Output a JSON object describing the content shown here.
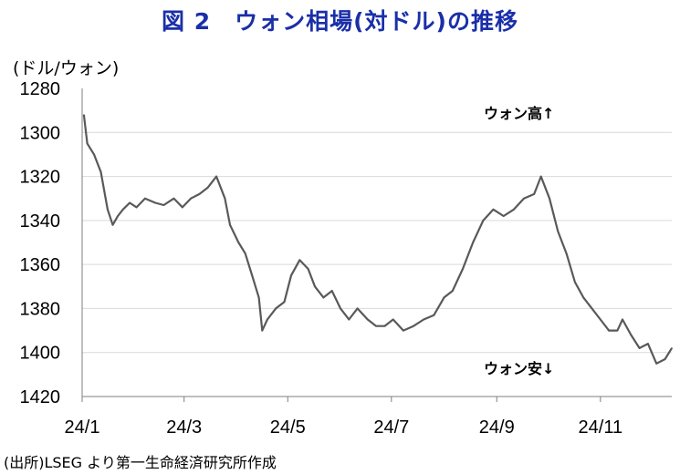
{
  "title": "図 2　ウォン相場(対ドル)の推移",
  "unit_label": "(ドル/ウォン)",
  "source": "(出所)LSEG より第一生命経済研究所作成",
  "chart_data": {
    "type": "line",
    "title": "図 2　ウォン相場(対ドル)の推移",
    "ylabel": "(ドル/ウォン)",
    "xlabel": "",
    "y_inverted": true,
    "ylim": [
      1280,
      1420
    ],
    "yticks": [
      "1280",
      "1300",
      "1320",
      "1340",
      "1360",
      "1380",
      "1400",
      "1420"
    ],
    "xticks": [
      "24/1",
      "24/3",
      "24/5",
      "24/7",
      "24/9",
      "24/11"
    ],
    "grid": "horizontal",
    "line_color": "#595959",
    "annotations": [
      "ウォン高↑",
      "ウォン安↓"
    ],
    "series": [
      {
        "x": [
          "24/1/02",
          "24/1/04",
          "24/1/08",
          "24/1/12",
          "24/1/16",
          "24/1/19",
          "24/1/22",
          "24/1/25",
          "24/1/29",
          "24/2/02",
          "24/2/07",
          "24/2/13",
          "24/2/18",
          "24/2/24",
          "24/2/29",
          "24/3/05",
          "24/3/10",
          "24/3/15",
          "24/3/20",
          "24/3/25",
          "24/3/28",
          "24/4/02",
          "24/4/06",
          "24/4/10",
          "24/4/14",
          "24/4/16",
          "24/4/19",
          "24/4/24",
          "24/4/29",
          "24/5/03",
          "24/5/08",
          "24/5/13",
          "24/5/17",
          "24/5/22",
          "24/5/27",
          "24/6/01",
          "24/6/06",
          "24/6/11",
          "24/6/17",
          "24/6/22",
          "24/6/27",
          "24/7/02",
          "24/7/08",
          "24/7/14",
          "24/7/20",
          "24/7/26",
          "24/8/01",
          "24/8/06",
          "24/8/12",
          "24/8/18",
          "24/8/24",
          "24/8/30",
          "24/9/05",
          "24/9/11",
          "24/9/17",
          "24/9/23",
          "24/9/27",
          "24/10/02",
          "24/10/07",
          "24/10/12",
          "24/10/17",
          "24/10/22",
          "24/10/27",
          "24/11/01",
          "24/11/06",
          "24/11/11",
          "24/11/14",
          "24/11/19",
          "24/11/24",
          "24/11/29",
          "24/12/04",
          "24/12/09",
          "24/12/13"
        ],
        "values": [
          1292,
          1305,
          1310,
          1318,
          1335,
          1342,
          1338,
          1335,
          1332,
          1334,
          1330,
          1332,
          1333,
          1330,
          1334,
          1330,
          1328,
          1325,
          1320,
          1330,
          1342,
          1350,
          1355,
          1365,
          1375,
          1390,
          1385,
          1380,
          1377,
          1365,
          1358,
          1362,
          1370,
          1375,
          1372,
          1380,
          1385,
          1380,
          1385,
          1388,
          1388,
          1385,
          1390,
          1388,
          1385,
          1383,
          1375,
          1372,
          1362,
          1350,
          1340,
          1335,
          1338,
          1335,
          1330,
          1328,
          1320,
          1330,
          1345,
          1355,
          1368,
          1375,
          1380,
          1385,
          1390,
          1390,
          1385,
          1392,
          1398,
          1396,
          1405,
          1403,
          1398
        ]
      }
    ]
  }
}
